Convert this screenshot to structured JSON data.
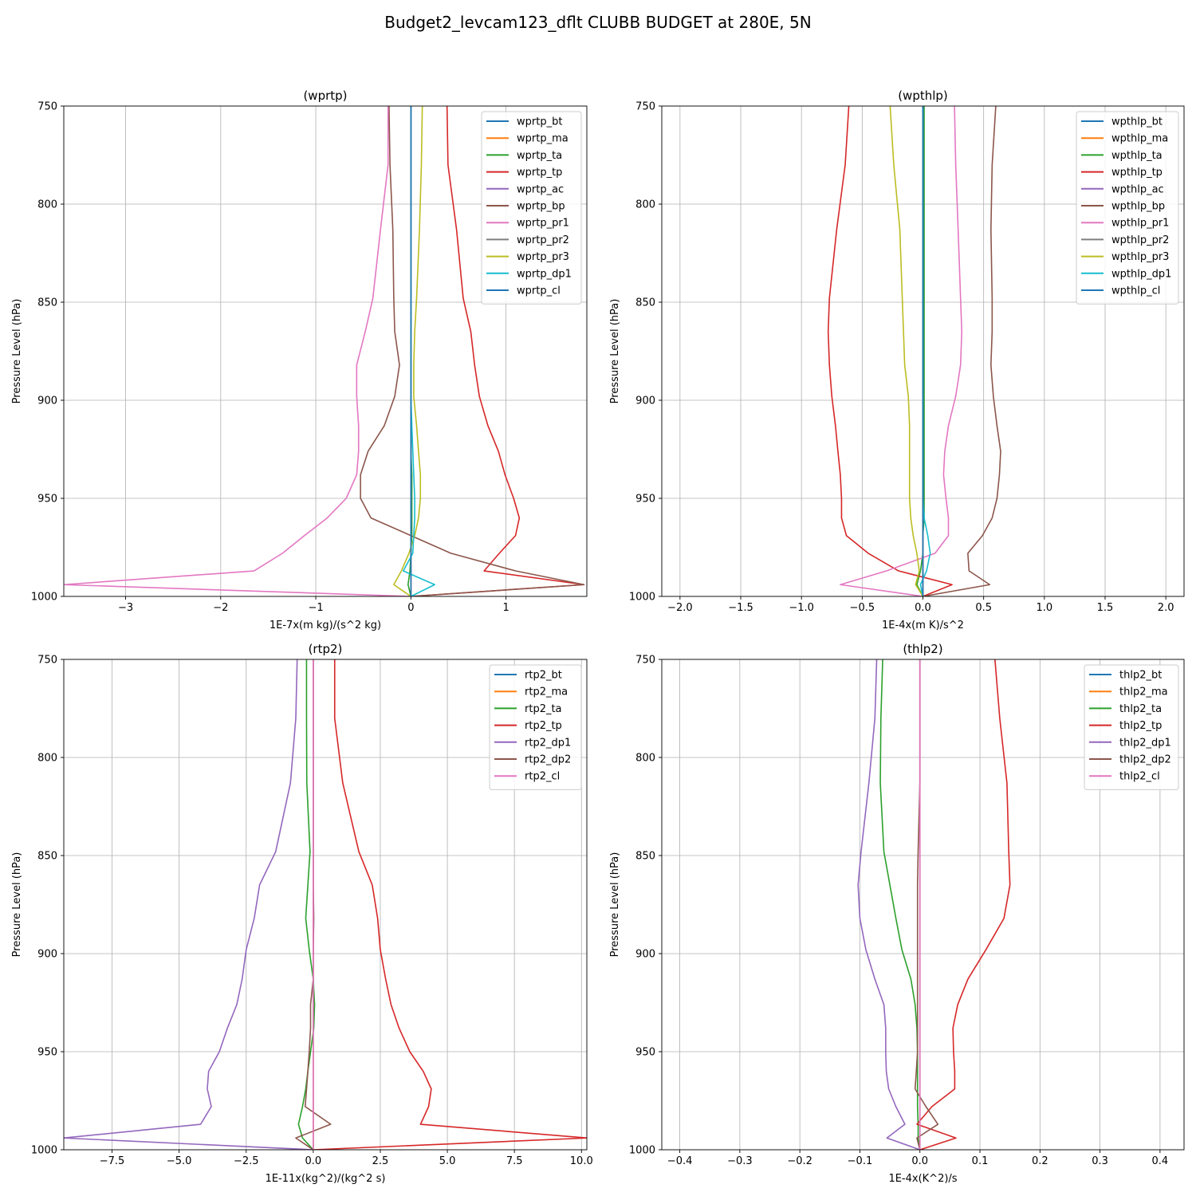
{
  "figure": {
    "title": "Budget2_levcam123_dflt CLUBB BUDGET at 280E, 5N"
  },
  "chart_data": [
    {
      "type": "line",
      "title": "(wprtp)",
      "xlabel": "1E-7x(m kg)/(s^2 kg)",
      "ylabel": "Pressure Level (hPa)",
      "xlim": [
        -3.65,
        1.85
      ],
      "ylim": [
        1000,
        750
      ],
      "xticks": [
        -3,
        -2,
        -1,
        0,
        1
      ],
      "xtick_labels": [
        "−3",
        "−2",
        "−1",
        "0",
        "1"
      ],
      "yticks": [
        750,
        800,
        850,
        900,
        950,
        1000
      ],
      "grid": true,
      "legend_position": "top-right",
      "levels": [
        750,
        780,
        813,
        848,
        865,
        882,
        898,
        913,
        926,
        938,
        950,
        960,
        969,
        978,
        987,
        994,
        1000
      ],
      "series": [
        {
          "name": "wprtp_bt",
          "color": "#1f77b4",
          "values": [
            0,
            0,
            0,
            0,
            0,
            0,
            0,
            0,
            0,
            0,
            0,
            0,
            0,
            0,
            0,
            0,
            0
          ]
        },
        {
          "name": "wprtp_ma",
          "color": "#ff7f0e",
          "values": [
            0,
            0,
            0,
            0,
            0,
            0,
            0,
            0,
            0,
            0,
            0,
            0,
            0,
            0,
            0,
            0,
            0
          ]
        },
        {
          "name": "wprtp_ta",
          "color": "#2ca02c",
          "values": [
            0,
            0,
            0,
            0,
            0,
            0,
            0,
            0,
            0,
            0.01,
            0.01,
            0.01,
            0.01,
            0,
            -0.01,
            -0.03,
            0
          ]
        },
        {
          "name": "wprtp_tp",
          "color": "#d62728",
          "values": [
            0.38,
            0.39,
            0.48,
            0.55,
            0.63,
            0.67,
            0.72,
            0.81,
            0.92,
            0.99,
            1.08,
            1.14,
            1.1,
            0.93,
            0.77,
            1.82,
            0
          ]
        },
        {
          "name": "wprtp_ac",
          "color": "#9467bd",
          "values": [
            0,
            0,
            0,
            0,
            0,
            0,
            0,
            0,
            0,
            0,
            0,
            0,
            0,
            0,
            0,
            0,
            0
          ]
        },
        {
          "name": "wprtp_bp",
          "color": "#8c564b",
          "values": [
            -0.23,
            -0.22,
            -0.19,
            -0.18,
            -0.17,
            -0.12,
            -0.17,
            -0.28,
            -0.45,
            -0.53,
            -0.53,
            -0.42,
            0,
            0.42,
            1.1,
            1.82,
            0
          ]
        },
        {
          "name": "wprtp_pr1",
          "color": "#e377c2",
          "values": [
            -0.24,
            -0.24,
            -0.32,
            -0.4,
            -0.48,
            -0.57,
            -0.57,
            -0.55,
            -0.55,
            -0.57,
            -0.68,
            -0.88,
            -1.12,
            -1.35,
            -1.65,
            -3.65,
            0
          ]
        },
        {
          "name": "wprtp_pr2",
          "color": "#7f7f7f",
          "values": [
            0,
            0,
            0,
            0,
            0,
            0,
            0,
            0,
            0,
            0,
            0,
            0,
            0,
            0,
            0,
            0,
            0
          ]
        },
        {
          "name": "wprtp_pr3",
          "color": "#bcbd22",
          "values": [
            0.12,
            0.11,
            0.09,
            0.06,
            0.04,
            0.03,
            0.03,
            0.06,
            0.08,
            0.1,
            0.1,
            0.08,
            0.04,
            -0.02,
            -0.1,
            -0.18,
            0
          ]
        },
        {
          "name": "wprtp_dp1",
          "color": "#17becf",
          "values": [
            0,
            0,
            0,
            0,
            0,
            0,
            0,
            0.01,
            0.02,
            0.03,
            0.04,
            0.04,
            0.03,
            0.02,
            -0.08,
            0.25,
            0
          ]
        },
        {
          "name": "wprtp_cl",
          "color": "#1f77b4",
          "values": [
            0,
            0,
            0,
            0,
            0,
            0,
            0,
            0,
            0,
            0,
            0,
            0,
            0,
            0,
            0,
            0,
            0
          ]
        }
      ]
    },
    {
      "type": "line",
      "title": "(wpthlp)",
      "xlabel": "1E-4x(m K)/s^2",
      "ylabel": "Pressure Level (hPa)",
      "xlim": [
        -2.15,
        2.15
      ],
      "ylim": [
        1000,
        750
      ],
      "xticks": [
        -2.0,
        -1.5,
        -1.0,
        -0.5,
        0.0,
        0.5,
        1.0,
        1.5,
        2.0
      ],
      "xtick_labels": [
        "−2.0",
        "−1.5",
        "−1.0",
        "−0.5",
        "0.0",
        "0.5",
        "1.0",
        "1.5",
        "2.0"
      ],
      "yticks": [
        750,
        800,
        850,
        900,
        950,
        1000
      ],
      "grid": true,
      "legend_position": "top-right",
      "levels": [
        750,
        780,
        813,
        848,
        865,
        882,
        898,
        913,
        926,
        938,
        950,
        960,
        969,
        978,
        987,
        994,
        1000
      ],
      "series": [
        {
          "name": "wpthlp_bt",
          "color": "#1f77b4",
          "values": [
            0,
            0,
            0,
            0,
            0,
            0,
            0,
            0,
            0,
            0,
            0,
            0,
            0,
            0,
            0,
            0,
            0
          ]
        },
        {
          "name": "wpthlp_ma",
          "color": "#ff7f0e",
          "values": [
            0,
            0,
            0,
            0,
            0,
            0,
            0,
            0,
            0,
            0,
            0,
            0,
            0,
            0,
            0,
            0,
            0
          ]
        },
        {
          "name": "wpthlp_ta",
          "color": "#2ca02c",
          "values": [
            0.01,
            0.01,
            0.01,
            0.01,
            0.01,
            0.01,
            0.01,
            0.01,
            0.01,
            0.01,
            0.01,
            0.01,
            0,
            0,
            -0.02,
            -0.05,
            0
          ]
        },
        {
          "name": "wpthlp_tp",
          "color": "#d62728",
          "values": [
            -0.61,
            -0.64,
            -0.71,
            -0.77,
            -0.78,
            -0.77,
            -0.75,
            -0.72,
            -0.7,
            -0.68,
            -0.67,
            -0.67,
            -0.63,
            -0.45,
            -0.2,
            0.24,
            0
          ]
        },
        {
          "name": "wpthlp_ac",
          "color": "#9467bd",
          "values": [
            0,
            0,
            0,
            0,
            0,
            0,
            0,
            0,
            0,
            0,
            0,
            0,
            0,
            0,
            0,
            0,
            0
          ]
        },
        {
          "name": "wpthlp_bp",
          "color": "#8c564b",
          "values": [
            0.6,
            0.57,
            0.56,
            0.57,
            0.57,
            0.56,
            0.58,
            0.61,
            0.64,
            0.63,
            0.61,
            0.57,
            0.49,
            0.37,
            0.38,
            0.55,
            0
          ]
        },
        {
          "name": "wpthlp_pr1",
          "color": "#e377c2",
          "values": [
            0.26,
            0.27,
            0.29,
            0.31,
            0.32,
            0.31,
            0.27,
            0.21,
            0.18,
            0.17,
            0.19,
            0.21,
            0.21,
            0.1,
            -0.3,
            -0.68,
            0
          ]
        },
        {
          "name": "wpthlp_pr2",
          "color": "#7f7f7f",
          "values": [
            0,
            0,
            0,
            0,
            0,
            0,
            0,
            0,
            0,
            0,
            0,
            0,
            0,
            0,
            0,
            0,
            0
          ]
        },
        {
          "name": "wpthlp_pr3",
          "color": "#bcbd22",
          "values": [
            -0.27,
            -0.24,
            -0.19,
            -0.17,
            -0.16,
            -0.15,
            -0.12,
            -0.11,
            -0.11,
            -0.11,
            -0.11,
            -0.1,
            -0.08,
            -0.05,
            -0.03,
            -0.06,
            0
          ]
        },
        {
          "name": "wpthlp_dp1",
          "color": "#17becf",
          "values": [
            0,
            0,
            0,
            0,
            0,
            0,
            0,
            0,
            0,
            0,
            0,
            0.01,
            0.04,
            0.06,
            0.03,
            -0.02,
            0
          ]
        },
        {
          "name": "wpthlp_cl",
          "color": "#1f77b4",
          "values": [
            0,
            0,
            0,
            0,
            0,
            0,
            0,
            0,
            0,
            0,
            0,
            0,
            0,
            0,
            0,
            0,
            0
          ]
        }
      ]
    },
    {
      "type": "line",
      "title": "(rtp2)",
      "xlabel": "1E-11x(kg^2)/(kg^2 s)",
      "ylabel": "Pressure Level (hPa)",
      "xlim": [
        -9.3,
        10.2
      ],
      "ylim": [
        1000,
        750
      ],
      "xticks": [
        -7.5,
        -5.0,
        -2.5,
        0.0,
        2.5,
        5.0,
        7.5,
        10.0
      ],
      "xtick_labels": [
        "−7.5",
        "−5.0",
        "−2.5",
        "0.0",
        "2.5",
        "5.0",
        "7.5",
        "10.0"
      ],
      "yticks": [
        750,
        800,
        850,
        900,
        950,
        1000
      ],
      "grid": true,
      "legend_position": "top-right",
      "levels": [
        750,
        780,
        813,
        848,
        865,
        882,
        898,
        913,
        926,
        938,
        950,
        960,
        969,
        978,
        987,
        994,
        1000
      ],
      "series": [
        {
          "name": "rtp2_bt",
          "color": "#1f77b4",
          "values": [
            0,
            0,
            0,
            0,
            0,
            0,
            0,
            0,
            0,
            0,
            0,
            0,
            0,
            0,
            0,
            0,
            0
          ]
        },
        {
          "name": "rtp2_ma",
          "color": "#ff7f0e",
          "values": [
            0,
            0,
            0,
            0,
            0,
            0,
            0,
            0,
            0,
            0,
            0,
            0,
            0,
            0,
            0,
            0,
            0
          ]
        },
        {
          "name": "rtp2_ta",
          "color": "#2ca02c",
          "values": [
            -0.25,
            -0.25,
            -0.24,
            -0.12,
            -0.2,
            -0.28,
            -0.15,
            0,
            0.05,
            0.02,
            -0.1,
            -0.2,
            -0.28,
            -0.4,
            -0.55,
            -0.4,
            0
          ]
        },
        {
          "name": "rtp2_tp",
          "color": "#d62728",
          "values": [
            0.8,
            0.8,
            1.1,
            1.7,
            2.2,
            2.4,
            2.5,
            2.7,
            2.9,
            3.2,
            3.6,
            4.1,
            4.4,
            4.3,
            4.0,
            10.2,
            0
          ]
        },
        {
          "name": "rtp2_dp1",
          "color": "#9467bd",
          "values": [
            -0.6,
            -0.65,
            -0.85,
            -1.4,
            -2.0,
            -2.2,
            -2.5,
            -2.65,
            -2.85,
            -3.2,
            -3.5,
            -3.9,
            -3.95,
            -3.8,
            -4.2,
            -9.3,
            0
          ]
        },
        {
          "name": "rtp2_dp2",
          "color": "#8c564b",
          "values": [
            0,
            0,
            0,
            0,
            0,
            0.02,
            0,
            0,
            -0.1,
            -0.1,
            -0.15,
            -0.2,
            -0.25,
            -0.3,
            0.65,
            -0.65,
            0
          ]
        },
        {
          "name": "rtp2_cl",
          "color": "#e377c2",
          "values": [
            0,
            0,
            0,
            0,
            0,
            0,
            0,
            0,
            0,
            0,
            0,
            0,
            0,
            0,
            0,
            0,
            0
          ]
        }
      ]
    },
    {
      "type": "line",
      "title": "(thlp2)",
      "xlabel": "1E-4x(K^2)/s",
      "ylabel": "Pressure Level (hPa)",
      "xlim": [
        -0.43,
        0.44
      ],
      "ylim": [
        1000,
        750
      ],
      "xticks": [
        -0.4,
        -0.3,
        -0.2,
        -0.1,
        0.0,
        0.1,
        0.2,
        0.3,
        0.4
      ],
      "xtick_labels": [
        "−0.4",
        "−0.3",
        "−0.2",
        "−0.1",
        "0.0",
        "0.1",
        "0.2",
        "0.3",
        "0.4"
      ],
      "yticks": [
        750,
        800,
        850,
        900,
        950,
        1000
      ],
      "grid": true,
      "legend_position": "top-right",
      "levels": [
        750,
        780,
        813,
        848,
        865,
        882,
        898,
        913,
        926,
        938,
        950,
        960,
        969,
        978,
        987,
        994,
        1000
      ],
      "series": [
        {
          "name": "thlp2_bt",
          "color": "#1f77b4",
          "values": [
            0,
            0,
            0,
            0,
            0,
            0,
            0,
            0,
            0,
            0,
            0,
            0,
            0,
            0,
            0,
            0,
            0
          ]
        },
        {
          "name": "thlp2_ma",
          "color": "#ff7f0e",
          "values": [
            0,
            0,
            0,
            0,
            0,
            0,
            0,
            0,
            0,
            0,
            0,
            0,
            0,
            0,
            0,
            0,
            0
          ]
        },
        {
          "name": "thlp2_ta",
          "color": "#2ca02c",
          "values": [
            -0.062,
            -0.065,
            -0.066,
            -0.06,
            -0.05,
            -0.04,
            -0.03,
            -0.015,
            -0.008,
            -0.005,
            -0.004,
            -0.004,
            -0.004,
            -0.004,
            -0.003,
            -0.003,
            0
          ]
        },
        {
          "name": "thlp2_tp",
          "color": "#d62728",
          "values": [
            0.125,
            0.133,
            0.145,
            0.148,
            0.15,
            0.14,
            0.11,
            0.08,
            0.063,
            0.055,
            0.056,
            0.058,
            0.058,
            0.02,
            -0.005,
            0.06,
            0
          ]
        },
        {
          "name": "thlp2_dp1",
          "color": "#9467bd",
          "values": [
            -0.072,
            -0.075,
            -0.085,
            -0.098,
            -0.103,
            -0.1,
            -0.09,
            -0.075,
            -0.06,
            -0.057,
            -0.057,
            -0.056,
            -0.052,
            -0.04,
            -0.025,
            -0.055,
            0
          ]
        },
        {
          "name": "thlp2_dp2",
          "color": "#8c564b",
          "values": [
            0,
            0,
            0,
            -0.003,
            -0.004,
            -0.004,
            -0.004,
            -0.004,
            -0.004,
            -0.004,
            -0.004,
            -0.006,
            -0.008,
            0.01,
            0.03,
            -0.005,
            0
          ]
        },
        {
          "name": "thlp2_cl",
          "color": "#e377c2",
          "values": [
            0,
            0,
            0,
            0,
            0,
            0,
            0,
            0,
            0,
            0,
            0,
            0,
            0,
            0,
            0,
            0,
            0
          ]
        }
      ]
    }
  ]
}
